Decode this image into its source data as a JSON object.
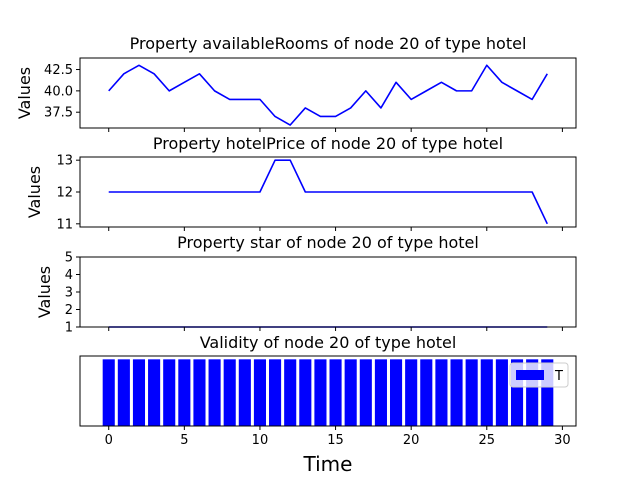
{
  "chart_data": [
    {
      "type": "line",
      "title": "Property availableRooms of node 20 of type hotel",
      "ylabel": "Values",
      "xlabel": "",
      "color": "#0000ff",
      "x": [
        0,
        1,
        2,
        3,
        4,
        5,
        6,
        7,
        8,
        9,
        10,
        11,
        12,
        13,
        14,
        15,
        16,
        17,
        18,
        19,
        20,
        21,
        22,
        23,
        24,
        25,
        26,
        27,
        28,
        29
      ],
      "values": [
        40,
        42,
        43,
        42,
        40,
        41,
        42,
        40,
        39,
        39,
        39,
        37,
        36,
        38,
        37,
        37,
        38,
        40,
        38,
        41,
        39,
        40,
        41,
        40,
        40,
        43,
        41,
        40,
        39,
        42
      ],
      "xlim": [
        -1.9,
        30.9
      ],
      "ylim": [
        35.65,
        43.85
      ],
      "yticks": [
        37.5,
        40.0,
        42.5
      ],
      "ytick_labels": [
        "37.5",
        "40.0",
        "42.5"
      ]
    },
    {
      "type": "line",
      "title": "Property hotelPrice of node 20 of type hotel",
      "ylabel": "Values",
      "xlabel": "",
      "color": "#0000ff",
      "x": [
        0,
        1,
        2,
        3,
        4,
        5,
        6,
        7,
        8,
        9,
        10,
        11,
        12,
        13,
        14,
        15,
        16,
        17,
        18,
        19,
        20,
        21,
        22,
        23,
        24,
        25,
        26,
        27,
        28,
        29
      ],
      "values": [
        12,
        12,
        12,
        12,
        12,
        12,
        12,
        12,
        12,
        12,
        12,
        13,
        13,
        12,
        12,
        12,
        12,
        12,
        12,
        12,
        12,
        12,
        12,
        12,
        12,
        12,
        12,
        12,
        12,
        11
      ],
      "xlim": [
        -1.9,
        30.9
      ],
      "ylim": [
        10.9,
        13.1
      ],
      "yticks": [
        11,
        12,
        13
      ],
      "ytick_labels": [
        "11",
        "12",
        "13"
      ]
    },
    {
      "type": "line",
      "title": "Property star of node 20 of type hotel",
      "ylabel": "Values",
      "xlabel": "",
      "color": "#0000ff",
      "x": [
        0,
        1,
        2,
        3,
        4,
        5,
        6,
        7,
        8,
        9,
        10,
        11,
        12,
        13,
        14,
        15,
        16,
        17,
        18,
        19,
        20,
        21,
        22,
        23,
        24,
        25,
        26,
        27,
        28,
        29
      ],
      "values": [
        1,
        1,
        1,
        1,
        1,
        1,
        1,
        1,
        1,
        1,
        1,
        1,
        1,
        1,
        1,
        1,
        1,
        1,
        1,
        1,
        1,
        1,
        1,
        1,
        1,
        1,
        1,
        1,
        1,
        1
      ],
      "xlim": [
        -1.9,
        30.9
      ],
      "ylim": [
        1,
        5
      ],
      "yticks": [
        1,
        2,
        3,
        4,
        5
      ],
      "ytick_labels": [
        "1",
        "2",
        "3",
        "4",
        "5"
      ]
    },
    {
      "type": "bar",
      "title": "Validity of node 20 of type hotel",
      "ylabel": "",
      "xlabel": "Time",
      "color": "#0000ff",
      "x": [
        0,
        1,
        2,
        3,
        4,
        5,
        6,
        7,
        8,
        9,
        10,
        11,
        12,
        13,
        14,
        15,
        16,
        17,
        18,
        19,
        20,
        21,
        22,
        23,
        24,
        25,
        26,
        27,
        28,
        29
      ],
      "values": [
        1,
        1,
        1,
        1,
        1,
        1,
        1,
        1,
        1,
        1,
        1,
        1,
        1,
        1,
        1,
        1,
        1,
        1,
        1,
        1,
        1,
        1,
        1,
        1,
        1,
        1,
        1,
        1,
        1,
        1
      ],
      "xlim": [
        -1.9,
        30.9
      ],
      "ylim": [
        0,
        1.05
      ],
      "xticks": [
        0,
        5,
        10,
        15,
        20,
        25,
        30
      ],
      "xtick_labels": [
        "0",
        "5",
        "10",
        "15",
        "20",
        "25",
        "30"
      ],
      "legend": {
        "label": "T",
        "position": "upper right"
      }
    }
  ]
}
